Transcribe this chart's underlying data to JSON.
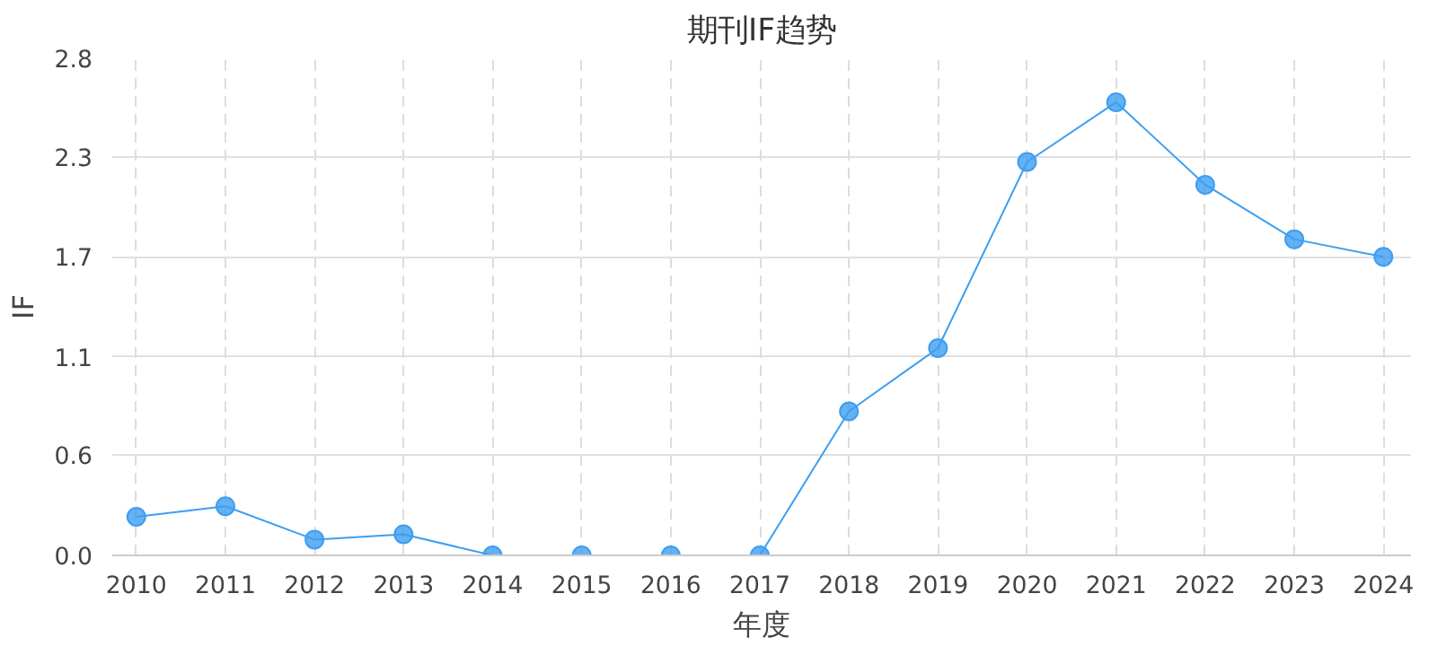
{
  "chart_data": {
    "type": "line",
    "title": "期刊IF趋势",
    "xlabel": "年度",
    "ylabel": "IF",
    "x": [
      2010,
      2011,
      2012,
      2013,
      2014,
      2015,
      2016,
      2017,
      2018,
      2019,
      2020,
      2021,
      2022,
      2023,
      2024
    ],
    "series": [
      {
        "color": "#3d9ef0",
        "values": [
          0.22,
          0.28,
          0.09,
          0.12,
          0,
          0,
          0,
          0,
          0.82,
          1.18,
          2.24,
          2.58,
          2.11,
          1.8,
          1.7
        ]
      }
    ],
    "xlim": [
      2009.73,
      2024.31
    ],
    "xticks": [
      2010,
      2011,
      2012,
      2013,
      2014,
      2015,
      2016,
      2017,
      2018,
      2019,
      2020,
      2021,
      2022,
      2023,
      2024
    ],
    "ylim": [
      0,
      2.83
    ],
    "yticks": [
      {
        "value": 0,
        "label": "0.0"
      },
      {
        "value": 0.57,
        "label": "0.6"
      },
      {
        "value": 1.13,
        "label": "1.1"
      },
      {
        "value": 1.7,
        "label": "1.7"
      },
      {
        "value": 2.27,
        "label": "2.3"
      },
      {
        "value": 2.83,
        "label": "2.8"
      }
    ],
    "grid": true,
    "marker": "circle",
    "line_style": "solid"
  }
}
